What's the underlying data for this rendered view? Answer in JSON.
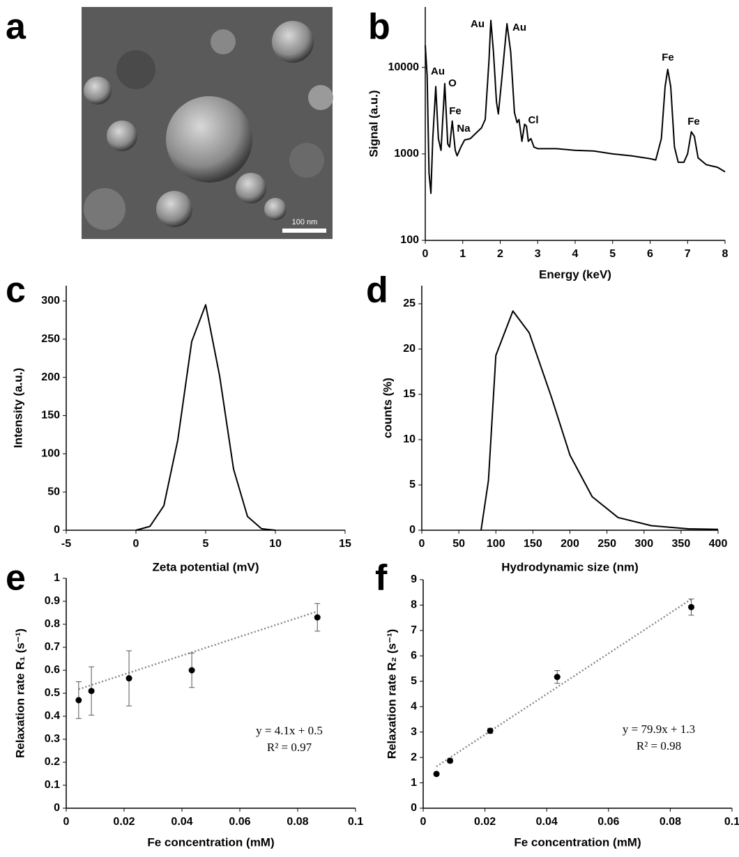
{
  "panel_a": {
    "label": "a",
    "scale_bar": "100 nm"
  },
  "chart_data": [
    {
      "type": "line",
      "panel_label": "b",
      "xlabel": "Energy (keV)",
      "ylabel": "Signal (a.u.)",
      "yscale": "log",
      "color": "#000000",
      "x": [
        0,
        0.05,
        0.1,
        0.15,
        0.2,
        0.28,
        0.35,
        0.42,
        0.52,
        0.6,
        0.65,
        0.72,
        0.8,
        0.85,
        0.95,
        1.05,
        1.2,
        1.5,
        1.6,
        1.7,
        1.75,
        1.82,
        1.9,
        1.95,
        2.05,
        2.18,
        2.28,
        2.38,
        2.45,
        2.5,
        2.58,
        2.65,
        2.7,
        2.75,
        2.82,
        2.9,
        3.0,
        3.5,
        4.0,
        4.5,
        5.0,
        5.5,
        6.0,
        6.15,
        6.3,
        6.4,
        6.47,
        6.55,
        6.65,
        6.75,
        6.9,
        7.0,
        7.1,
        7.18,
        7.28,
        7.5,
        7.8,
        8.0
      ],
      "values": [
        18000,
        8000,
        600,
        350,
        1500,
        6000,
        1500,
        1100,
        6500,
        1300,
        1200,
        2400,
        1100,
        950,
        1200,
        1450,
        1500,
        2000,
        2500,
        12000,
        35000,
        15000,
        4000,
        2900,
        8000,
        32000,
        15000,
        3000,
        2300,
        2500,
        1400,
        2200,
        2100,
        1400,
        1500,
        1200,
        1150,
        1150,
        1100,
        1080,
        1000,
        950,
        880,
        850,
        1500,
        6000,
        9500,
        6000,
        1200,
        800,
        800,
        1000,
        1800,
        1600,
        900,
        750,
        700,
        620
      ],
      "xlim": [
        0,
        8
      ],
      "xticks": [
        0,
        1,
        2,
        3,
        4,
        5,
        6,
        7,
        8
      ],
      "ylim": [
        100,
        50000
      ],
      "yticks": [
        100,
        1000,
        10000
      ],
      "annotations": [
        "Au",
        "O",
        "Fe",
        "Na",
        "Au",
        "Au",
        "Cl",
        "Fe",
        "Fe"
      ]
    },
    {
      "type": "line",
      "panel_label": "c",
      "xlabel": "Zeta potential (mV)",
      "ylabel": "Intensity (a.u.)",
      "color": "#000000",
      "x": [
        0,
        1,
        2,
        3,
        4,
        5,
        6,
        7,
        8,
        9,
        10
      ],
      "values": [
        0,
        5,
        32,
        118,
        247,
        295,
        202,
        80,
        18,
        2,
        0
      ],
      "xlim": [
        -5,
        15
      ],
      "xticks": [
        -5,
        0,
        5,
        10,
        15
      ],
      "ylim": [
        0,
        320
      ],
      "yticks": [
        0,
        50,
        100,
        150,
        200,
        250,
        300
      ]
    },
    {
      "type": "line",
      "panel_label": "d",
      "xlabel": "Hydrodynamic size (nm)",
      "ylabel": "counts (%)",
      "color": "#000000",
      "x": [
        80,
        90,
        100,
        123,
        145,
        175,
        200,
        230,
        265,
        310,
        360,
        400
      ],
      "values": [
        0,
        5.5,
        19.3,
        24.2,
        21.8,
        14.7,
        8.3,
        3.7,
        1.4,
        0.5,
        0.15,
        0.1
      ],
      "xlim": [
        0,
        400
      ],
      "xticks": [
        0,
        50,
        100,
        150,
        200,
        250,
        300,
        350,
        400
      ],
      "ylim": [
        0,
        27
      ],
      "yticks": [
        0,
        5,
        10,
        15,
        20,
        25
      ]
    },
    {
      "type": "scatter",
      "panel_label": "e",
      "xlabel": "Fe concentration (mM)",
      "ylabel": "Relaxation rate R₁ (s⁻¹)",
      "color": "#000000",
      "x": [
        0.0043,
        0.0087,
        0.0217,
        0.0434,
        0.0868
      ],
      "values": [
        0.47,
        0.51,
        0.565,
        0.6,
        0.83
      ],
      "errors": [
        0.08,
        0.105,
        0.12,
        0.075,
        0.06
      ],
      "trendline": {
        "slope": 4.1,
        "intercept": 0.5,
        "label": "y = 4.1x + 0.5",
        "r2_label": "R² = 0.97"
      },
      "xlim": [
        0,
        0.1
      ],
      "xticks": [
        0,
        0.02,
        0.04,
        0.06,
        0.08,
        0.1
      ],
      "ylim": [
        0,
        1
      ],
      "yticks": [
        0,
        0.1,
        0.2,
        0.3,
        0.4,
        0.5,
        0.6,
        0.7,
        0.8,
        0.9,
        1
      ]
    },
    {
      "type": "scatter",
      "panel_label": "f",
      "xlabel": "Fe concentration (mM)",
      "ylabel": "Relaxation rate R₂ (s⁻¹)",
      "color": "#000000",
      "x": [
        0.0043,
        0.0087,
        0.0217,
        0.0434,
        0.0868
      ],
      "values": [
        1.35,
        1.87,
        3.05,
        5.17,
        7.92
      ],
      "errors": [
        0.05,
        0.08,
        0.1,
        0.25,
        0.32
      ],
      "trendline": {
        "slope": 79.9,
        "intercept": 1.3,
        "label": "y = 79.9x + 1.3",
        "r2_label": "R² = 0.98"
      },
      "xlim": [
        0,
        0.1
      ],
      "xticks": [
        0,
        0.02,
        0.04,
        0.06,
        0.08,
        0.1
      ],
      "ylim": [
        0,
        9
      ],
      "yticks": [
        0,
        1,
        2,
        3,
        4,
        5,
        6,
        7,
        8,
        9
      ]
    }
  ]
}
